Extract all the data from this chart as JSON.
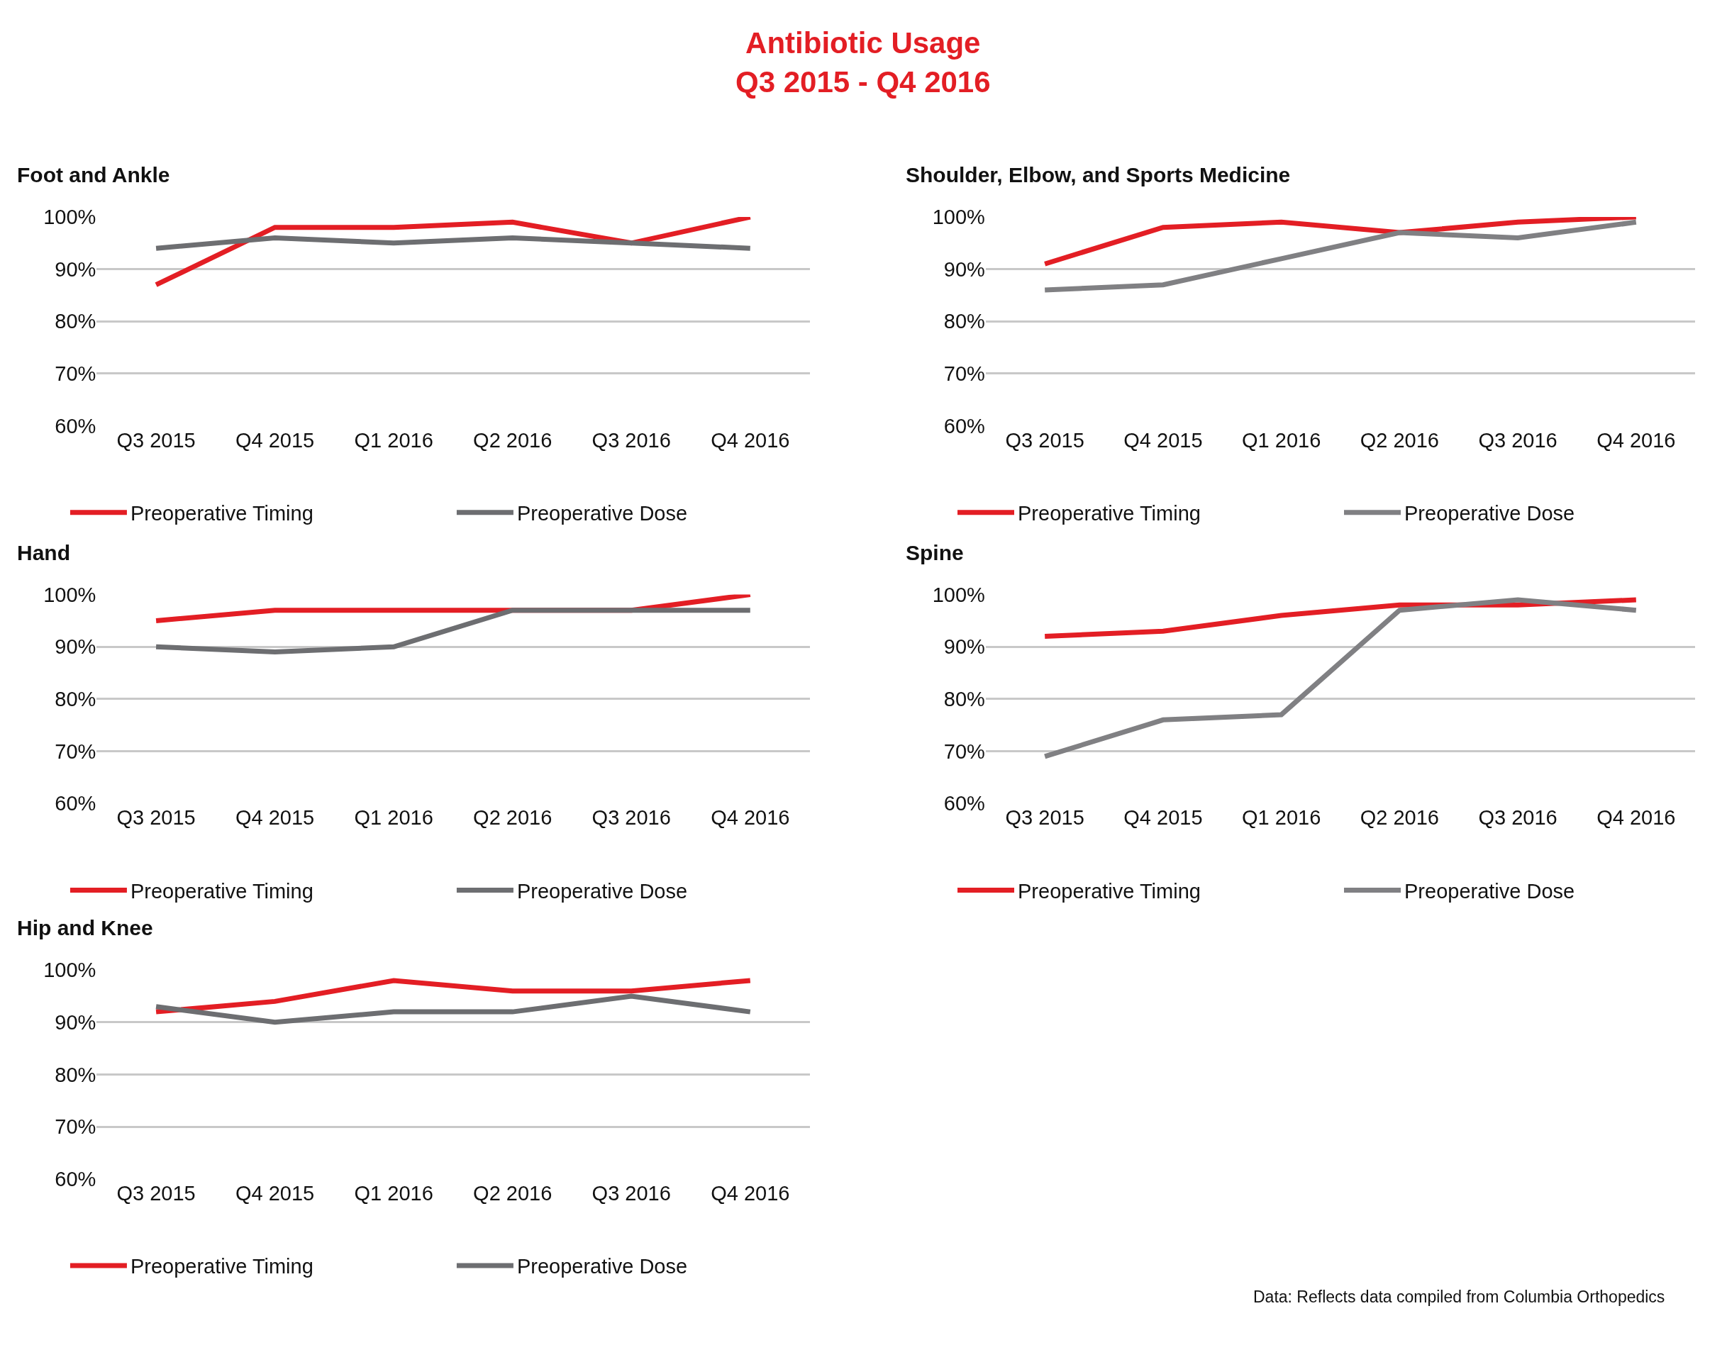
{
  "chart_data": [
    {
      "type": "line",
      "title": "Antibiotic Usage\nQ3 2015 - Q4 2016",
      "subtitle": "Foot and Ankle",
      "categories": [
        "Q3 2015",
        "Q4 2015",
        "Q1 2016",
        "Q2 2016",
        "Q3 2016",
        "Q4 2016"
      ],
      "series": [
        {
          "name": "Preoperative Timing",
          "color": "#e31e24",
          "values": [
            87,
            98,
            98,
            99,
            95,
            100
          ]
        },
        {
          "name": "Preoperative Dose",
          "color": "#6d6e71",
          "values": [
            94,
            96,
            95,
            96,
            95,
            94
          ]
        }
      ],
      "ylim": [
        60,
        100
      ],
      "yticks": [
        {
          "value": 60,
          "label": "60%"
        },
        {
          "value": 70,
          "label": "70%"
        },
        {
          "value": 80,
          "label": "80%"
        },
        {
          "value": 90,
          "label": "90%"
        },
        {
          "value": 100,
          "label": "100%"
        }
      ],
      "grid": "y",
      "legend": "bottom"
    },
    {
      "type": "line",
      "subtitle": "Shoulder, Elbow, and Sports Medicine",
      "categories": [
        "Q3 2015",
        "Q4 2015",
        "Q1 2016",
        "Q2 2016",
        "Q3 2016",
        "Q4 2016"
      ],
      "series": [
        {
          "name": "Preoperative Timing",
          "color": "#e31e24",
          "values": [
            91,
            98,
            99,
            97,
            99,
            100
          ]
        },
        {
          "name": "Preoperative Dose",
          "color": "#808083",
          "values": [
            86,
            87,
            92,
            97,
            96,
            99
          ]
        }
      ],
      "ylim": [
        60,
        100
      ],
      "yticks": [
        {
          "value": 60,
          "label": "60%"
        },
        {
          "value": 70,
          "label": "70%"
        },
        {
          "value": 80,
          "label": "80%"
        },
        {
          "value": 90,
          "label": "90%"
        },
        {
          "value": 100,
          "label": "100%"
        }
      ],
      "grid": "y",
      "legend": "bottom"
    },
    {
      "type": "line",
      "subtitle": "Hand",
      "categories": [
        "Q3 2015",
        "Q4 2015",
        "Q1 2016",
        "Q2 2016",
        "Q3 2016",
        "Q4 2016"
      ],
      "series": [
        {
          "name": "Preoperative Timing",
          "color": "#e31e24",
          "values": [
            95,
            97,
            97,
            97,
            97,
            100
          ]
        },
        {
          "name": "Preoperative Dose",
          "color": "#6d6e71",
          "values": [
            90,
            89,
            90,
            97,
            97,
            97
          ]
        }
      ],
      "ylim": [
        60,
        100
      ],
      "yticks": [
        {
          "value": 60,
          "label": "60%"
        },
        {
          "value": 70,
          "label": "70%"
        },
        {
          "value": 80,
          "label": "80%"
        },
        {
          "value": 90,
          "label": "90%"
        },
        {
          "value": 100,
          "label": "100%"
        }
      ],
      "grid": "y",
      "legend": "bottom"
    },
    {
      "type": "line",
      "subtitle": "Spine",
      "categories": [
        "Q3 2015",
        "Q4 2015",
        "Q1 2016",
        "Q2 2016",
        "Q3 2016",
        "Q4 2016"
      ],
      "series": [
        {
          "name": "Preoperative Timing",
          "color": "#e31e24",
          "values": [
            92,
            93,
            96,
            98,
            98,
            99
          ]
        },
        {
          "name": "Preoperative Dose",
          "color": "#808083",
          "values": [
            69,
            76,
            77,
            97,
            99,
            97
          ]
        }
      ],
      "ylim": [
        60,
        100
      ],
      "yticks": [
        {
          "value": 60,
          "label": "60%"
        },
        {
          "value": 70,
          "label": "70%"
        },
        {
          "value": 80,
          "label": "80%"
        },
        {
          "value": 90,
          "label": "90%"
        },
        {
          "value": 100,
          "label": "100%"
        }
      ],
      "grid": "y",
      "legend": "bottom"
    },
    {
      "type": "line",
      "subtitle": "Hip and Knee",
      "categories": [
        "Q3 2015",
        "Q4 2015",
        "Q1 2016",
        "Q2 2016",
        "Q3 2016",
        "Q4 2016"
      ],
      "series": [
        {
          "name": "Preoperative Timing",
          "color": "#e31e24",
          "values": [
            92,
            94,
            98,
            96,
            96,
            98
          ]
        },
        {
          "name": "Preoperative Dose",
          "color": "#6d6e71",
          "values": [
            93,
            90,
            92,
            92,
            95,
            92
          ]
        }
      ],
      "ylim": [
        60,
        100
      ],
      "yticks": [
        {
          "value": 60,
          "label": "60%"
        },
        {
          "value": 70,
          "label": "70%"
        },
        {
          "value": 80,
          "label": "80%"
        },
        {
          "value": 90,
          "label": "90%"
        },
        {
          "value": 100,
          "label": "100%"
        }
      ],
      "grid": "y",
      "legend": "bottom",
      "annotations": [
        "Data: Reflects data compiled from Columbia Orthopedics"
      ]
    }
  ]
}
